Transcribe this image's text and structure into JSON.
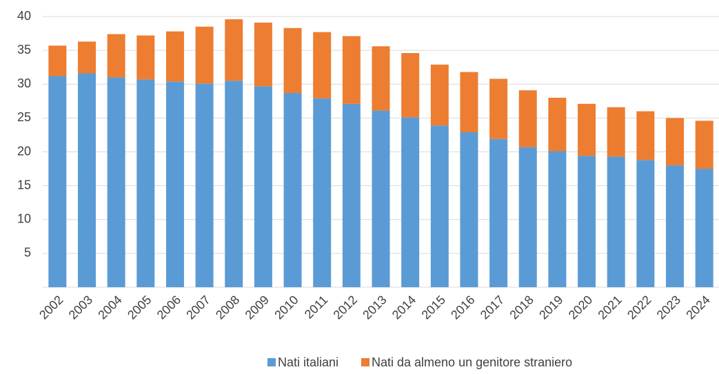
{
  "chart_data": {
    "type": "stacked_bar",
    "categories": [
      "2002",
      "2003",
      "2004",
      "2005",
      "2006",
      "2007",
      "2008",
      "2009",
      "2010",
      "2011",
      "2012",
      "2013",
      "2014",
      "2015",
      "2016",
      "2017",
      "2018",
      "2019",
      "2020",
      "2021",
      "2022",
      "2023",
      "2024"
    ],
    "series": [
      {
        "name": "Nati italiani",
        "color": "#5b9bd5",
        "values": [
          31.2,
          31.6,
          31.0,
          30.7,
          30.4,
          30.1,
          30.5,
          29.7,
          28.7,
          27.9,
          27.1,
          26.1,
          25.1,
          23.9,
          22.9,
          21.9,
          20.7,
          20.1,
          19.4,
          19.3,
          18.8,
          18.0,
          17.5
        ]
      },
      {
        "name": "Nati da almeno un genitore straniero",
        "color": "#ed7d31",
        "values": [
          4.5,
          4.7,
          6.4,
          6.5,
          7.4,
          8.4,
          9.1,
          9.4,
          9.6,
          9.8,
          10.0,
          9.5,
          9.5,
          9.0,
          8.9,
          8.9,
          8.4,
          7.9,
          7.7,
          7.3,
          7.2,
          7.0,
          7.1
        ]
      }
    ],
    "ylim": [
      0,
      40
    ],
    "yticks": [
      5,
      10,
      15,
      20,
      25,
      30,
      35,
      40
    ],
    "grid": true,
    "legend": "bottom"
  }
}
